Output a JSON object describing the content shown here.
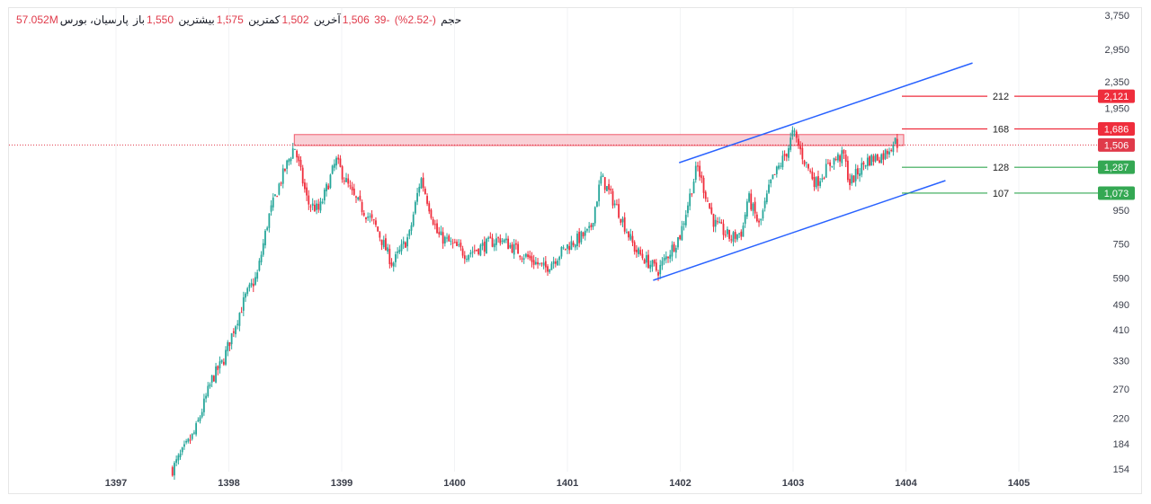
{
  "header": {
    "symbol": "پارسیان، بورس",
    "open_label": "باز",
    "open": "1,550",
    "high_label": "بیشترین",
    "high": "1,575",
    "low_label": "کمترین",
    "low": "1,502",
    "close_label": "آخرین",
    "close": "1,506",
    "change": "-39",
    "change_pct": "(-2.52%)",
    "volume_label": "حجم",
    "volume": "57.052M"
  },
  "colors": {
    "up": "#26a69a",
    "down": "#ef2d3c",
    "trend": "#2962ff",
    "zone": "#f8c8cf",
    "support": "#34a853",
    "resistance": "#ef2d3c",
    "current": "#e03a4a"
  },
  "chart_data": {
    "type": "candlestick",
    "y_scale": "log",
    "ylim": [
      154,
      3750
    ],
    "xlim": [
      1396.6,
      1406.1
    ],
    "y_ticks": [
      "3,750",
      "2,950",
      "2,350",
      "1,950",
      "950",
      "750",
      "590",
      "490",
      "410",
      "330",
      "270",
      "220",
      "184",
      "154"
    ],
    "y_tick_values": [
      3750,
      2950,
      2350,
      1950,
      950,
      750,
      590,
      490,
      410,
      330,
      270,
      220,
      184,
      154
    ],
    "x_ticks": [
      "1397",
      "1398",
      "1399",
      "1400",
      "1401",
      "1402",
      "1403",
      "1404",
      "1405"
    ],
    "x_tick_values": [
      1397,
      1398,
      1399,
      1400,
      1401,
      1402,
      1403,
      1404,
      1405
    ],
    "price_path": [
      [
        1397.5,
        154
      ],
      [
        1397.7,
        200
      ],
      [
        1397.85,
        290
      ],
      [
        1397.95,
        330
      ],
      [
        1398.05,
        420
      ],
      [
        1398.15,
        520
      ],
      [
        1398.25,
        600
      ],
      [
        1398.35,
        900
      ],
      [
        1398.45,
        1150
      ],
      [
        1398.58,
        1500
      ],
      [
        1398.7,
        1000
      ],
      [
        1398.8,
        950
      ],
      [
        1398.95,
        1350
      ],
      [
        1399.1,
        1050
      ],
      [
        1399.3,
        850
      ],
      [
        1399.45,
        650
      ],
      [
        1399.6,
        800
      ],
      [
        1399.7,
        1200
      ],
      [
        1399.85,
        800
      ],
      [
        1400.1,
        700
      ],
      [
        1400.4,
        780
      ],
      [
        1400.6,
        700
      ],
      [
        1400.8,
        630
      ],
      [
        1401.0,
        740
      ],
      [
        1401.2,
        820
      ],
      [
        1401.3,
        1200
      ],
      [
        1401.45,
        950
      ],
      [
        1401.6,
        720
      ],
      [
        1401.8,
        620
      ],
      [
        1402.0,
        800
      ],
      [
        1402.15,
        1300
      ],
      [
        1402.3,
        870
      ],
      [
        1402.45,
        780
      ],
      [
        1402.55,
        820
      ],
      [
        1402.6,
        1050
      ],
      [
        1402.7,
        850
      ],
      [
        1402.8,
        1150
      ],
      [
        1402.95,
        1450
      ],
      [
        1403.0,
        1650
      ],
      [
        1403.1,
        1350
      ],
      [
        1403.2,
        1150
      ],
      [
        1403.35,
        1350
      ],
      [
        1403.45,
        1400
      ],
      [
        1403.5,
        1150
      ],
      [
        1403.65,
        1350
      ],
      [
        1403.8,
        1400
      ],
      [
        1403.9,
        1550
      ],
      [
        1403.93,
        1506
      ]
    ],
    "trendlines": [
      {
        "from": [
          1401.99,
          1329
        ],
        "to": [
          1404.59,
          2680
        ]
      },
      {
        "from": [
          1401.76,
          581
        ],
        "to": [
          1404.35,
          1172
        ]
      }
    ],
    "resistance_zone": {
      "from": 1398.58,
      "to": 1403.98,
      "low": 1500,
      "high": 1620
    },
    "levels": [
      {
        "label": "212",
        "value": 2121,
        "badge": "2,121",
        "type": "resistance"
      },
      {
        "label": "168",
        "value": 1686,
        "badge": "1,686",
        "type": "resistance"
      },
      {
        "label": "128",
        "value": 1287,
        "badge": "1,287",
        "type": "support"
      },
      {
        "label": "107",
        "value": 1073,
        "badge": "1,073",
        "type": "support"
      }
    ],
    "current_price": {
      "value": 1506,
      "badge": "1,506"
    }
  }
}
